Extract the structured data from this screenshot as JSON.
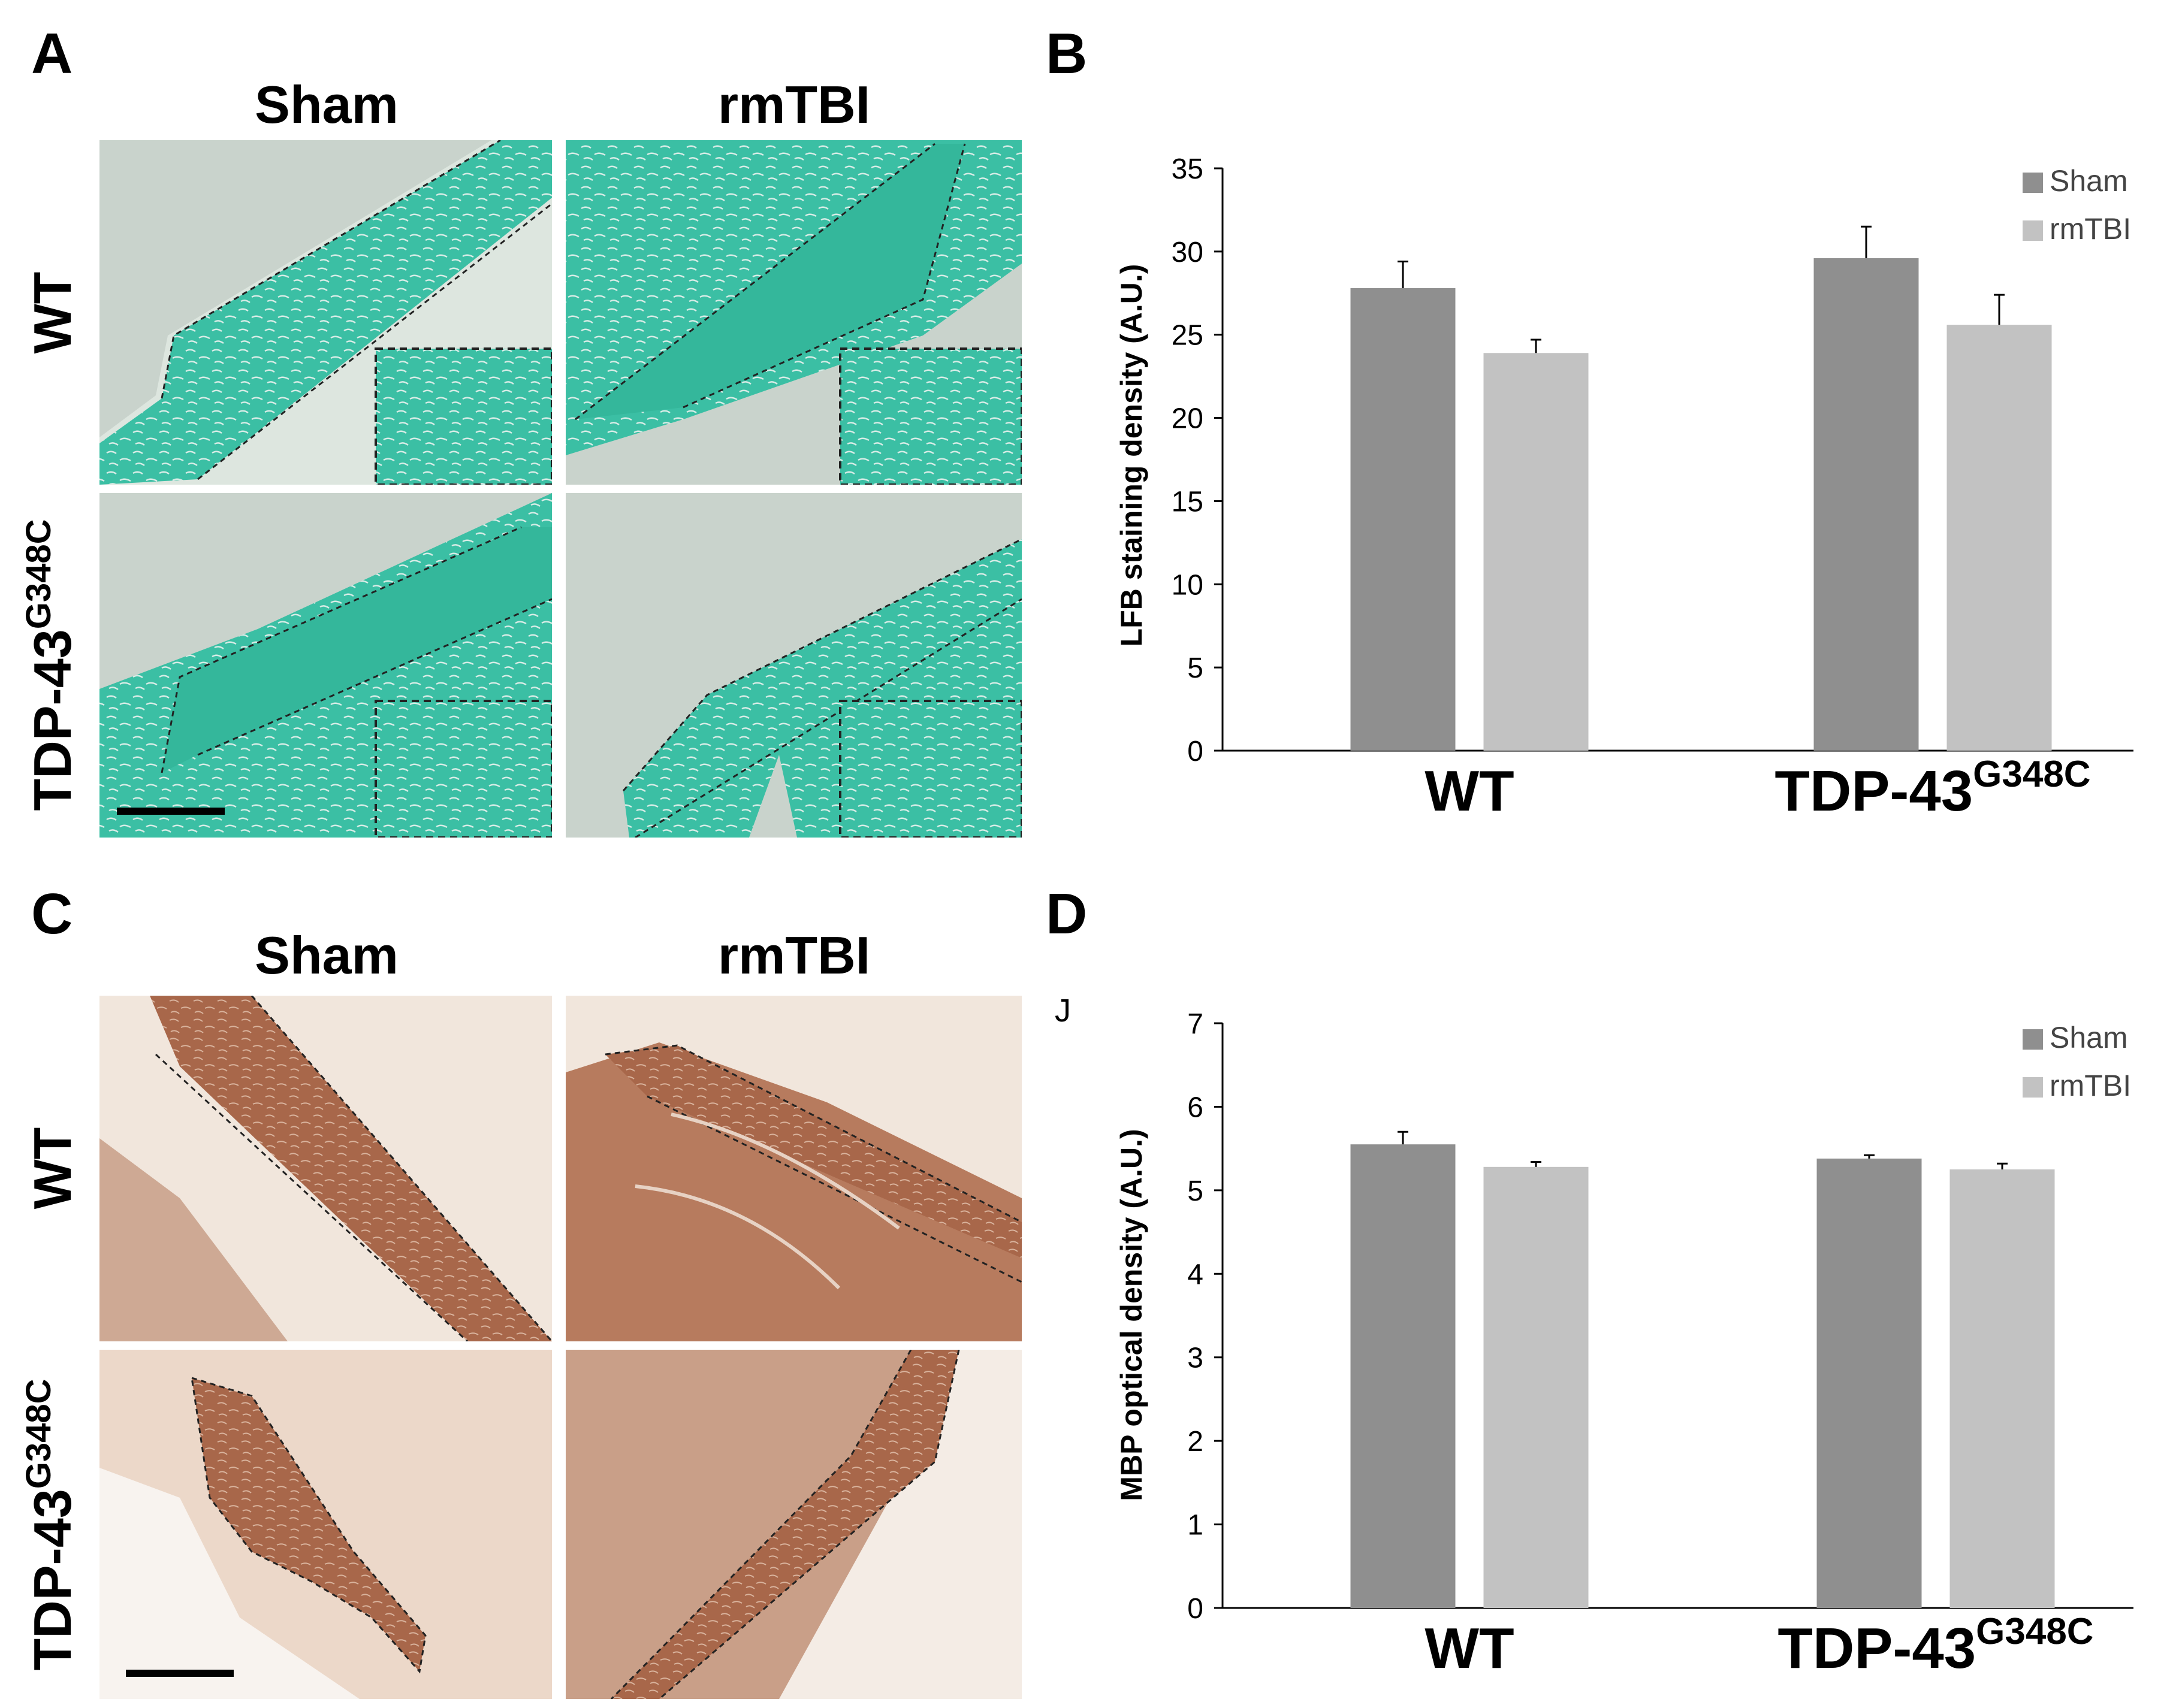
{
  "panels": {
    "a": "A",
    "b": "B",
    "c": "C",
    "d": "D",
    "d_stray": "J"
  },
  "micrographs": {
    "col_sham": "Sham",
    "col_rmtbi": "rmTBI",
    "row_wt": "WT",
    "row_mut_base": "TDP-43",
    "row_mut_sup": "G348C"
  },
  "colors": {
    "lfb_tissue": "#3bbfa4",
    "lfb_bg": "#c9d3cc",
    "mbp_tissue": "#a8674a",
    "mbp_bg": "#f1e6dc",
    "bar_sham": "#8f8f8f",
    "bar_rmtbi": "#c2c2c2"
  },
  "chart_data": [
    {
      "id": "B",
      "type": "bar",
      "ylabel": "LFB staining density (A.U.)",
      "ylim": [
        0,
        35
      ],
      "yticks": [
        "0",
        "5",
        "10",
        "15",
        "20",
        "25",
        "30",
        "35"
      ],
      "groups": [
        {
          "base": "WT",
          "sup": ""
        },
        {
          "base": "TDP-43",
          "sup": "G348C"
        }
      ],
      "series": [
        {
          "name": "Sham",
          "values": [
            27.8,
            29.6
          ],
          "errors": [
            1.6,
            1.9
          ]
        },
        {
          "name": "rmTBI",
          "values": [
            23.9,
            25.6
          ],
          "errors": [
            0.8,
            1.8
          ]
        }
      ],
      "legend": "top-right"
    },
    {
      "id": "D",
      "type": "bar",
      "ylabel": "MBP optical density (A.U.)",
      "ylim": [
        0,
        7
      ],
      "yticks": [
        "0",
        "1",
        "2",
        "3",
        "4",
        "5",
        "6",
        "7"
      ],
      "groups": [
        {
          "base": "WT",
          "sup": ""
        },
        {
          "base": "TDP-43",
          "sup": "G348C"
        }
      ],
      "series": [
        {
          "name": "Sham",
          "values": [
            5.55,
            5.38
          ],
          "errors": [
            0.15,
            0.04
          ]
        },
        {
          "name": "rmTBI",
          "values": [
            5.28,
            5.25
          ],
          "errors": [
            0.06,
            0.07
          ]
        }
      ],
      "legend": "top-right"
    }
  ]
}
